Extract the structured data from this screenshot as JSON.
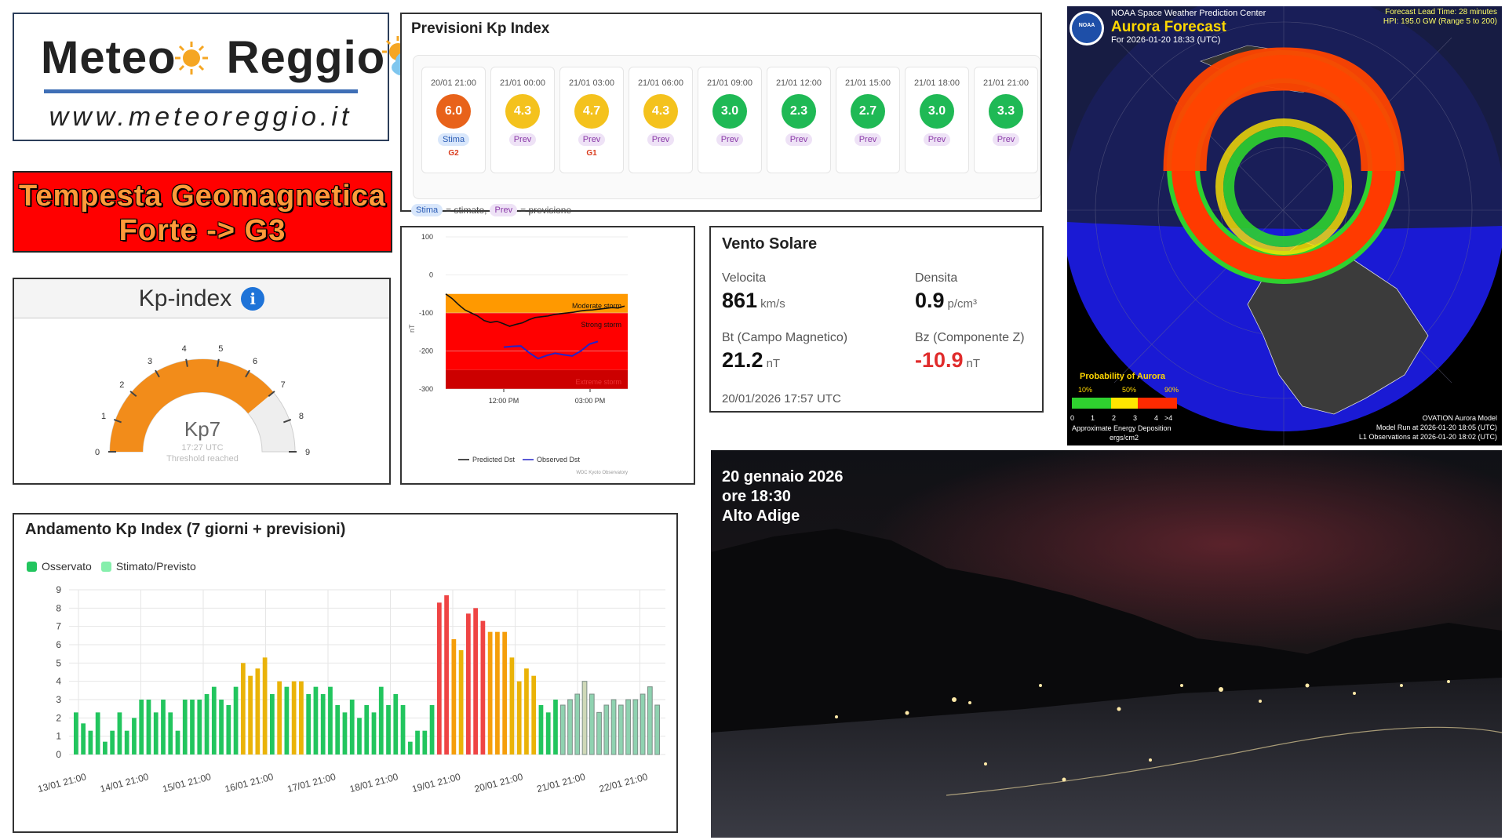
{
  "logo": {
    "brand_left": "Meteo",
    "brand_right": "Reggio",
    "url": "www.meteoreggio.it"
  },
  "alert": {
    "line1": "Tempesta Geomagnetica",
    "line2": "Forte -> G3"
  },
  "kp_gauge": {
    "title": "Kp-index",
    "info_glyph": "i",
    "value_label": "Kp7",
    "value": 7,
    "max": 9,
    "time": "17:27 UTC",
    "status": "Threshold reached",
    "ticks": [
      "0",
      "1",
      "2",
      "3",
      "4",
      "5",
      "6",
      "7",
      "8",
      "9"
    ],
    "color": "#f28c1a"
  },
  "forecast": {
    "title": "Previsioni Kp Index",
    "cards": [
      {
        "time": "20/01 21:00",
        "value": "6.0",
        "tag": "Stima",
        "g": "G2",
        "color": "#e8621a"
      },
      {
        "time": "21/01 00:00",
        "value": "4.3",
        "tag": "Prev",
        "g": "",
        "color": "#f4c21d"
      },
      {
        "time": "21/01 03:00",
        "value": "4.7",
        "tag": "Prev",
        "g": "G1",
        "color": "#f4c21d"
      },
      {
        "time": "21/01 06:00",
        "value": "4.3",
        "tag": "Prev",
        "g": "",
        "color": "#f4c21d"
      },
      {
        "time": "21/01 09:00",
        "value": "3.0",
        "tag": "Prev",
        "g": "",
        "color": "#1fb955"
      },
      {
        "time": "21/01 12:00",
        "value": "2.3",
        "tag": "Prev",
        "g": "",
        "color": "#1fb955"
      },
      {
        "time": "21/01 15:00",
        "value": "2.7",
        "tag": "Prev",
        "g": "",
        "color": "#1fb955"
      },
      {
        "time": "21/01 18:00",
        "value": "3.0",
        "tag": "Prev",
        "g": "",
        "color": "#1fb955"
      },
      {
        "time": "21/01 21:00",
        "value": "3.3",
        "tag": "Prev",
        "g": "",
        "color": "#1fb955"
      }
    ],
    "legend": {
      "stima_tag": "Stima",
      "stima_text": "= stimato,",
      "prev_tag": "Prev",
      "prev_text": "= previsione"
    }
  },
  "dst_chart": {
    "ylabel": "nT",
    "y_ticks": [
      "100",
      "0",
      "-100",
      "-200",
      "-300"
    ],
    "x_ticks": [
      "12:00 PM",
      "03:00 PM"
    ],
    "zones": [
      "Moderate storm",
      "Strong storm",
      "Extreme storm"
    ],
    "legend_predicted": "Predicted Dst",
    "legend_observed": "Observed Dst",
    "credit": "WDC Kyoto Observatory",
    "predicted": [
      -50,
      -62,
      -78,
      -92,
      -100,
      -108,
      -120,
      -125,
      -122,
      -128,
      -135,
      -130,
      -126,
      -118,
      -112,
      -110,
      -108,
      -104,
      -102,
      -100,
      -98,
      -95,
      -93,
      -92,
      -90,
      -88,
      -86,
      -87,
      -82
    ],
    "observed": [
      -190,
      -188,
      -187,
      -205,
      -220,
      -212,
      -206,
      -210,
      -213,
      -200,
      -182,
      -175
    ]
  },
  "solar_wind": {
    "title": "Vento Solare",
    "speed_label": "Velocita",
    "speed_value": "861",
    "speed_unit": "km/s",
    "density_label": "Densita",
    "density_value": "0.9",
    "density_unit": "p/cm³",
    "bt_label": "Bt (Campo Magnetico)",
    "bt_value": "21.2",
    "bt_unit": "nT",
    "bz_label": "Bz (Componente Z)",
    "bz_value": "-10.9",
    "bz_unit": "nT",
    "bz_color": "#e02b2b",
    "timestamp": "20/01/2026 17:57 UTC"
  },
  "aurora": {
    "agency": "NOAA Space Weather Prediction Center",
    "title": "Aurora Forecast",
    "for_time": "For 2026-01-20 18:33 (UTC)",
    "lead_time": "Forecast Lead Time: 28 minutes",
    "hpi": "HPI: 195.0 GW (Range 5 to 200)",
    "prob_title": "Probability of Aurora",
    "prob_ticks": [
      "10%",
      "50%",
      "90%"
    ],
    "energy_ticks": [
      "0",
      "1",
      "2",
      "3",
      "4",
      ">4"
    ],
    "energy_label": "Approximate Energy Deposition",
    "energy_unit": "ergs/cm2",
    "model": "OVATION Aurora Model",
    "model_run": "Model Run at 2026-01-20 18:05 (UTC)",
    "l1_obs": "L1 Observations at 2026-01-20 18:02 (UTC)",
    "logo_text": "NOAA"
  },
  "trend": {
    "title": "Andamento Kp Index (7 giorni + previsioni)",
    "legend_observed": "Osservato",
    "legend_estimated": "Stimato/Previsto",
    "y_ticks": [
      "0",
      "1",
      "2",
      "3",
      "4",
      "5",
      "6",
      "7",
      "8",
      "9"
    ],
    "x_labels": [
      "13/01 21:00",
      "14/01 21:00",
      "15/01 21:00",
      "16/01 21:00",
      "17/01 21:00",
      "18/01 21:00",
      "19/01 21:00",
      "20/01 21:00",
      "21/01 21:00",
      "22/01 21:00"
    ],
    "observed_count": 67,
    "values": [
      2.3,
      1.7,
      1.3,
      2.3,
      0.7,
      1.3,
      2.3,
      1.3,
      2.0,
      3.0,
      3.0,
      2.3,
      3.0,
      2.3,
      1.3,
      3.0,
      3.0,
      3.0,
      3.3,
      3.7,
      3.0,
      2.7,
      3.7,
      5.0,
      4.3,
      4.7,
      5.3,
      3.3,
      4.0,
      3.7,
      4.0,
      4.0,
      3.3,
      3.7,
      3.3,
      3.7,
      2.7,
      2.3,
      3.0,
      2.0,
      2.7,
      2.3,
      3.7,
      2.7,
      3.3,
      2.7,
      0.7,
      1.3,
      1.3,
      2.7,
      8.3,
      8.7,
      6.3,
      5.7,
      7.7,
      8.0,
      7.3,
      6.7,
      6.7,
      6.7,
      5.3,
      4.0,
      4.7,
      4.3,
      2.7,
      2.3,
      3.0,
      2.7,
      3.0,
      3.3,
      4.0,
      3.3,
      2.3,
      2.7,
      3.0,
      2.7,
      3.0,
      3.0,
      3.3,
      3.7,
      2.7
    ],
    "colors": {
      "green": "#22c55e",
      "yellow": "#eab308",
      "red": "#ef4444",
      "orange": "#f59e0b",
      "forecast": "#86efac"
    }
  },
  "photo": {
    "line1": "20 gennaio 2026",
    "line2": "ore 18:30",
    "line3": "Alto Adige"
  }
}
